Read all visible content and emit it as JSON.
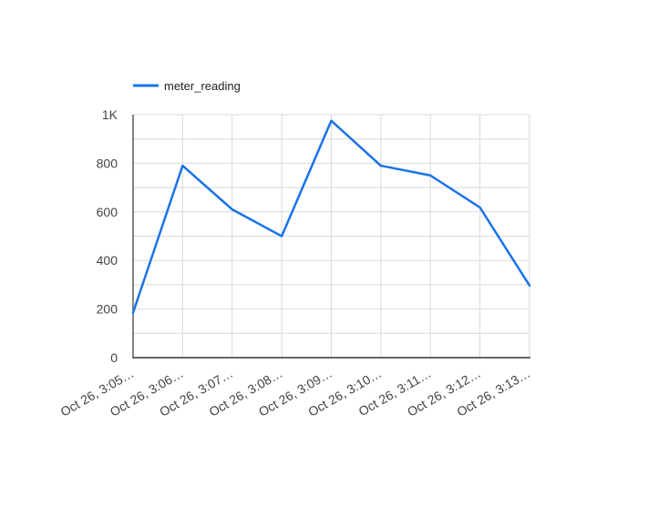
{
  "chart_data": {
    "type": "line",
    "categories": [
      "Oct 26, 3:05…",
      "Oct 26, 3:06…",
      "Oct 26, 3:07…",
      "Oct 26, 3:08…",
      "Oct 26, 3:09…",
      "Oct 26, 3:10…",
      "Oct 26, 3:11…",
      "Oct 26, 3:12…",
      "Oct 26, 3:13…"
    ],
    "series": [
      {
        "name": "meter_reading",
        "color": "#1a73e8",
        "values": [
          185,
          790,
          610,
          500,
          975,
          790,
          750,
          618,
          297
        ]
      }
    ],
    "ylim": [
      0,
      1000
    ],
    "y_ticks": [
      0,
      200,
      400,
      600,
      800,
      1000
    ],
    "y_tick_labels": [
      "0",
      "200",
      "400",
      "600",
      "800",
      "1K"
    ],
    "grid": true,
    "legend": "top-left",
    "title": "",
    "xlabel": "",
    "ylabel": ""
  }
}
